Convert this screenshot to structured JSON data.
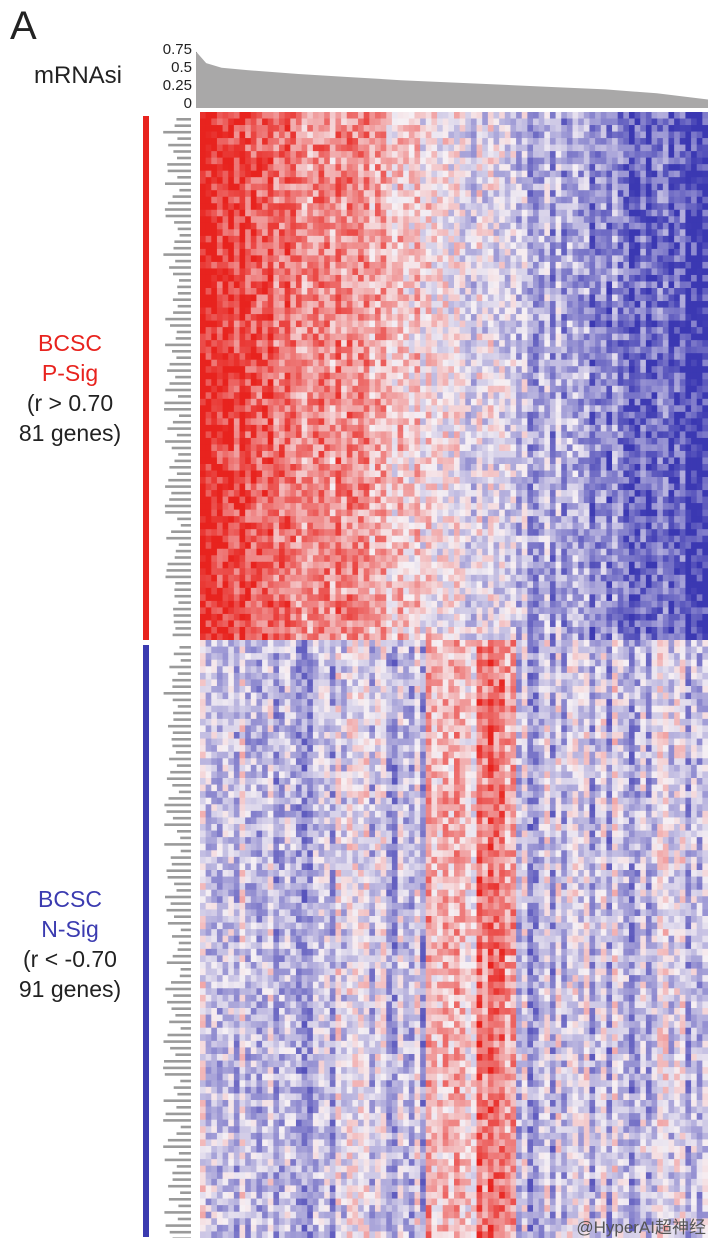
{
  "panel_label": "A",
  "watermark": "@HyperAI超神经",
  "colors": {
    "p_sig": "#e8231e",
    "n_sig": "#3b3bb0",
    "bar_fill": "#a9a8a8",
    "high": "#e8231e",
    "mid": "#f6f0f4",
    "low": "#3b38b2"
  },
  "chart_data": [
    {
      "type": "area",
      "ylabel": "mRNAsi",
      "yticks": [
        "0.75",
        "0.5",
        "0.25",
        "0"
      ],
      "ylim": [
        0,
        0.75
      ],
      "x": [
        0,
        0.02,
        0.05,
        0.1,
        0.2,
        0.3,
        0.4,
        0.5,
        0.6,
        0.7,
        0.8,
        0.9,
        0.95,
        1.0
      ],
      "values": [
        0.73,
        0.58,
        0.52,
        0.49,
        0.44,
        0.4,
        0.36,
        0.33,
        0.3,
        0.27,
        0.24,
        0.19,
        0.15,
        0.11
      ]
    },
    {
      "type": "heatmap",
      "rows_groups": [
        {
          "name": "BCSC",
          "sub": "P-Sig",
          "stat": "(r > 0.70",
          "count_label": "81 genes)",
          "genes": 81,
          "color": "#e8231e"
        },
        {
          "name": "BCSC",
          "sub": "N-Sig",
          "stat": "(r < -0.70",
          "count_label": "91 genes)",
          "genes": 91,
          "color": "#3b3bb0"
        }
      ],
      "sample_columns": 90,
      "color_scale": [
        "low",
        "mid",
        "high"
      ]
    }
  ]
}
